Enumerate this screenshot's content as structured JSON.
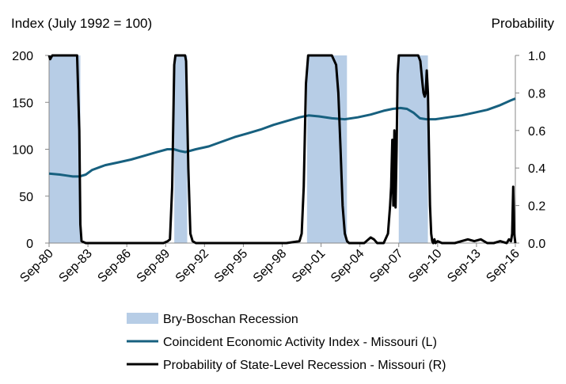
{
  "chart_data": {
    "type": "line",
    "left_axis_title": "Index (July 1992 = 100)",
    "right_axis_title": "Probability",
    "x_ticks": [
      "Sep-80",
      "Sep-83",
      "Sep-86",
      "Sep-89",
      "Sep-92",
      "Sep-95",
      "Sep-98",
      "Sep-01",
      "Sep-04",
      "Sep-07",
      "Sep-10",
      "Sep-13",
      "Sep-16"
    ],
    "x_range": [
      1980.667,
      2016.667
    ],
    "y_left": {
      "range": [
        0,
        200
      ],
      "ticks": [
        "0",
        "50",
        "100",
        "150",
        "200"
      ],
      "tick_values": [
        0,
        50,
        100,
        150,
        200
      ]
    },
    "y_right": {
      "range": [
        0,
        1
      ],
      "ticks": [
        "0.0",
        "0.2",
        "0.4",
        "0.6",
        "0.8",
        "1.0"
      ],
      "tick_values": [
        0,
        0.2,
        0.4,
        0.6,
        0.8,
        1.0
      ]
    },
    "grid": false,
    "legend_position": "bottom",
    "series": [
      {
        "name": "Bry-Boschan Recession",
        "kind": "shaded-periods",
        "color": "#b7cde6",
        "axis": "left",
        "periods": [
          [
            1980.667,
            1983.083
          ],
          [
            1990.333,
            1991.333
          ],
          [
            2000.583,
            2003.667
          ],
          [
            2007.667,
            2009.917
          ]
        ]
      },
      {
        "name": "Coincident Economic Activity Index - Missouri (L)",
        "kind": "line",
        "color": "#17607f",
        "axis": "left",
        "x": [
          1980.667,
          1981.5,
          1982.0,
          1982.5,
          1983.0,
          1983.5,
          1984.0,
          1985.0,
          1986.0,
          1987.0,
          1988.0,
          1989.0,
          1989.8,
          1990.3,
          1990.8,
          1991.2,
          1992.0,
          1993.0,
          1994.0,
          1995.0,
          1996.0,
          1997.0,
          1998.0,
          1999.0,
          2000.0,
          2000.7,
          2001.5,
          2002.5,
          2003.5,
          2004.5,
          2005.5,
          2006.5,
          2007.2,
          2007.8,
          2008.3,
          2008.8,
          2009.3,
          2009.8,
          2010.5,
          2011.5,
          2012.5,
          2013.5,
          2014.5,
          2015.5,
          2016.3,
          2016.667
        ],
        "y": [
          74,
          73,
          72,
          71,
          71,
          73,
          78,
          83,
          86,
          89,
          93,
          97,
          100,
          100,
          98,
          97,
          100,
          103,
          108,
          113,
          117,
          121,
          126,
          130,
          134,
          136,
          135,
          133,
          132,
          134,
          137,
          141,
          143,
          144,
          143,
          139,
          133,
          132,
          132,
          134,
          136,
          139,
          142,
          147,
          152,
          154
        ]
      },
      {
        "name": "Probability of State-Level Recession - Missouri (R)",
        "kind": "line",
        "color": "#000000",
        "axis": "right",
        "x": [
          1980.667,
          1980.75,
          1980.83,
          1980.92,
          1981.0,
          1982.5,
          1982.83,
          1983.0,
          1983.083,
          1983.17,
          1983.5,
          1989.5,
          1989.83,
          1990.0,
          1990.17,
          1990.33,
          1990.42,
          1991.17,
          1991.25,
          1991.42,
          1991.58,
          1991.75,
          1992.0,
          1994.0,
          1999.0,
          2000.0,
          2000.17,
          2000.33,
          2000.5,
          2000.67,
          2000.92,
          2001.5,
          2002.5,
          2002.83,
          2003.0,
          2003.17,
          2003.33,
          2003.5,
          2003.67,
          2003.83,
          2004.0,
          2005.0,
          2005.5,
          2005.75,
          2006.0,
          2006.5,
          2006.83,
          2007.0,
          2007.08,
          2007.17,
          2007.25,
          2007.33,
          2007.42,
          2007.5,
          2007.58,
          2007.67,
          2007.83,
          2008.0,
          2008.5,
          2009.0,
          2009.17,
          2009.33,
          2009.5,
          2009.58,
          2009.67,
          2009.75,
          2009.83,
          2009.92,
          2010.0,
          2010.08,
          2010.17,
          2010.25,
          2010.33,
          2010.42,
          2010.5,
          2010.67,
          2011.0,
          2012.0,
          2013.0,
          2013.5,
          2014.0,
          2014.5,
          2015.0,
          2015.5,
          2016.0,
          2016.17,
          2016.33,
          2016.42,
          2016.5,
          2016.58,
          2016.667
        ],
        "y": [
          1.0,
          0.98,
          0.99,
          1.0,
          1.0,
          1.0,
          1.0,
          0.6,
          0.1,
          0.01,
          0.0,
          0.0,
          0.01,
          0.02,
          0.3,
          0.95,
          1.0,
          1.0,
          0.97,
          0.4,
          0.05,
          0.01,
          0.0,
          0.0,
          0.0,
          0.01,
          0.05,
          0.3,
          0.85,
          1.0,
          1.0,
          1.0,
          1.0,
          0.95,
          0.8,
          0.5,
          0.2,
          0.05,
          0.01,
          0.0,
          0.0,
          0.0,
          0.03,
          0.02,
          0.0,
          0.0,
          0.05,
          0.2,
          0.3,
          0.55,
          0.2,
          0.6,
          0.19,
          0.5,
          0.9,
          1.0,
          1.0,
          1.0,
          1.0,
          1.0,
          1.0,
          0.97,
          0.85,
          0.8,
          0.78,
          0.8,
          0.92,
          0.8,
          0.5,
          0.2,
          0.05,
          0.01,
          0.0,
          0.02,
          0.0,
          0.01,
          0.0,
          0.0,
          0.02,
          0.01,
          0.02,
          0.0,
          0.0,
          0.01,
          0.0,
          0.02,
          0.01,
          0.05,
          0.3,
          0.05,
          0.0
        ]
      }
    ]
  }
}
